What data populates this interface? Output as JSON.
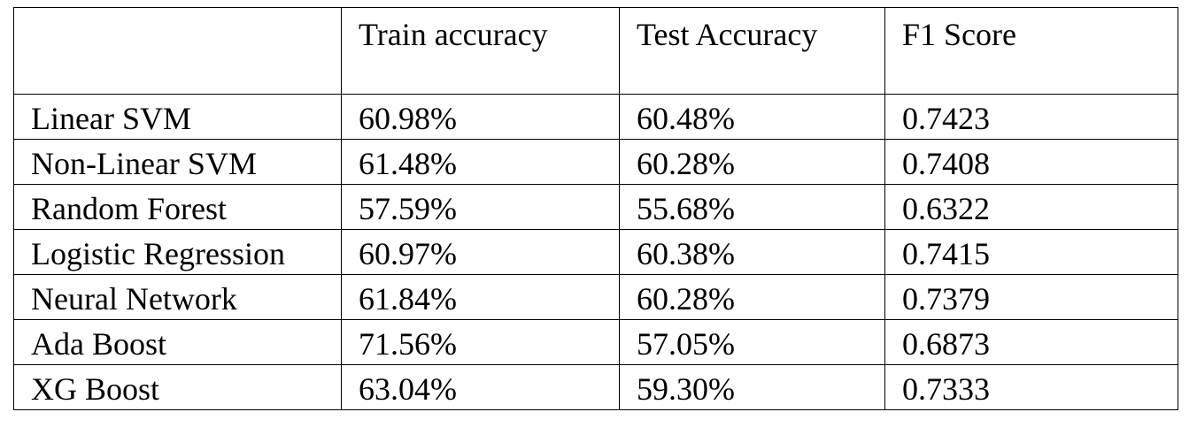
{
  "table": {
    "columns": [
      "",
      "Train accuracy",
      "Test Accuracy",
      "F1 Score"
    ],
    "rows": [
      [
        "Linear SVM",
        "60.98%",
        "60.48%",
        "0.7423"
      ],
      [
        "Non-Linear SVM",
        "61.48%",
        "60.28%",
        "0.7408"
      ],
      [
        "Random Forest",
        "57.59%",
        "55.68%",
        "0.6322"
      ],
      [
        "Logistic Regression",
        "60.97%",
        "60.38%",
        "0.7415"
      ],
      [
        "Neural Network",
        "61.84%",
        "60.28%",
        "0.7379"
      ],
      [
        "Ada Boost",
        "71.56%",
        "57.05%",
        "0.6873"
      ],
      [
        "XG Boost",
        "63.04%",
        "59.30%",
        "0.7333"
      ]
    ]
  }
}
